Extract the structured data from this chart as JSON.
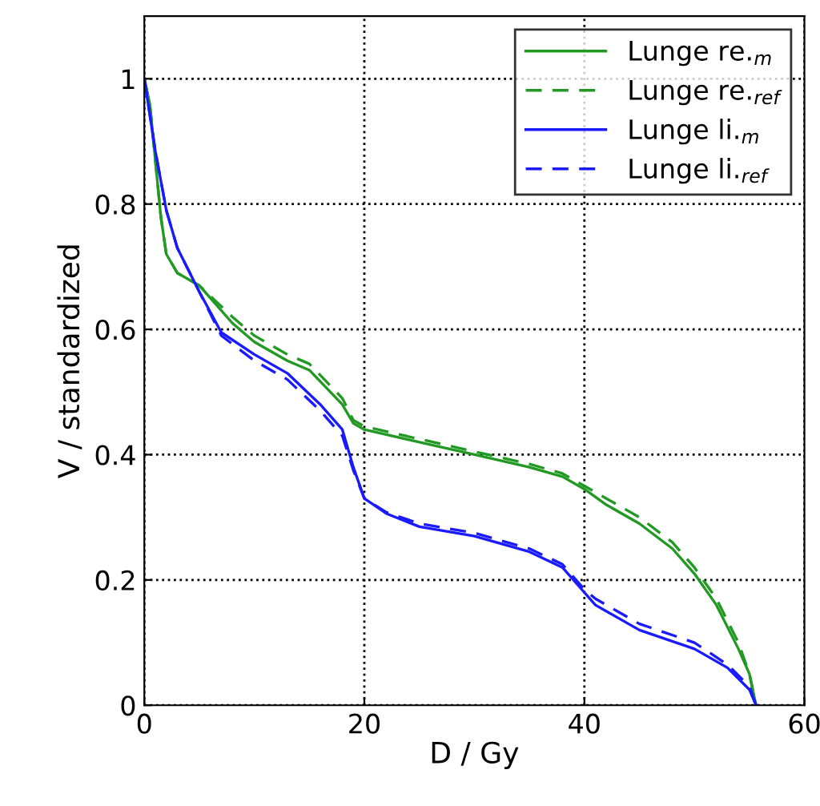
{
  "chart_data": {
    "type": "line",
    "xlabel": "D / Gy",
    "ylabel": "V / standardized",
    "xlim": [
      0,
      60
    ],
    "xticks": [
      0,
      20,
      40,
      60
    ],
    "ylim": [
      0,
      1.1
    ],
    "yticks": [
      0,
      0.2,
      0.4,
      0.6,
      0.8,
      1
    ],
    "grid": true,
    "legend": "top right",
    "series": [
      {
        "name": "Lunge re.$_{m}$",
        "color": "#229922",
        "line_style": "solid",
        "x": [
          0,
          0.5,
          1,
          1.5,
          2,
          3,
          5,
          8,
          10,
          13,
          15,
          18,
          19,
          20,
          25,
          30,
          35,
          38,
          40,
          42,
          45,
          48,
          50,
          52,
          54,
          55,
          55.6
        ],
        "values": [
          1,
          0.96,
          0.87,
          0.78,
          0.72,
          0.69,
          0.67,
          0.61,
          0.58,
          0.55,
          0.535,
          0.48,
          0.45,
          0.44,
          0.42,
          0.4,
          0.38,
          0.365,
          0.345,
          0.32,
          0.29,
          0.25,
          0.21,
          0.16,
          0.09,
          0.05,
          0
        ]
      },
      {
        "name": "Lunge re.$_{ref}$",
        "color": "#229922",
        "line_style": "dashed",
        "x": [
          0,
          0.5,
          1,
          1.5,
          2,
          3,
          5,
          8,
          10,
          13,
          15,
          18,
          19,
          20,
          25,
          30,
          35,
          38,
          40,
          42,
          45,
          48,
          50,
          52,
          54,
          55,
          55.6
        ],
        "values": [
          1,
          0.96,
          0.87,
          0.78,
          0.72,
          0.69,
          0.67,
          0.62,
          0.59,
          0.56,
          0.545,
          0.49,
          0.455,
          0.445,
          0.425,
          0.405,
          0.385,
          0.37,
          0.35,
          0.33,
          0.3,
          0.26,
          0.22,
          0.17,
          0.1,
          0.05,
          0
        ]
      },
      {
        "name": "Lunge li.$_{m}$",
        "color": "#1a1aff",
        "line_style": "solid",
        "x": [
          0,
          1,
          2,
          3,
          5,
          7,
          10,
          13,
          16,
          18,
          19,
          20,
          22,
          25,
          30,
          35,
          38,
          40,
          41,
          45,
          50,
          53,
          55,
          55.6
        ],
        "values": [
          1,
          0.885,
          0.79,
          0.73,
          0.66,
          0.595,
          0.56,
          0.53,
          0.48,
          0.44,
          0.38,
          0.33,
          0.306,
          0.285,
          0.27,
          0.245,
          0.22,
          0.18,
          0.16,
          0.12,
          0.09,
          0.06,
          0.025,
          0
        ]
      },
      {
        "name": "Lunge li.$_{ref}$",
        "color": "#1a1aff",
        "line_style": "dashed",
        "x": [
          0,
          1,
          2,
          3,
          5,
          7,
          10,
          13,
          16,
          18,
          19,
          20,
          22,
          25,
          30,
          35,
          38,
          40,
          41,
          45,
          50,
          53,
          55,
          55.6
        ],
        "values": [
          1,
          0.885,
          0.79,
          0.73,
          0.66,
          0.59,
          0.55,
          0.52,
          0.47,
          0.43,
          0.375,
          0.33,
          0.308,
          0.29,
          0.275,
          0.25,
          0.225,
          0.185,
          0.17,
          0.13,
          0.1,
          0.065,
          0.03,
          0
        ]
      }
    ]
  }
}
